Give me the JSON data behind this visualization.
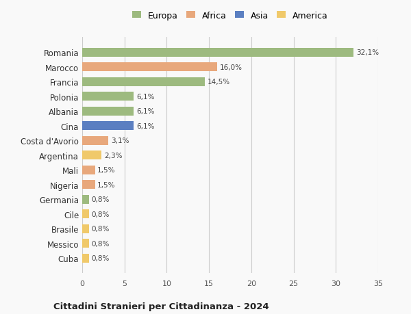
{
  "countries": [
    "Romania",
    "Marocco",
    "Francia",
    "Polonia",
    "Albania",
    "Cina",
    "Costa d'Avorio",
    "Argentina",
    "Mali",
    "Nigeria",
    "Germania",
    "Cile",
    "Brasile",
    "Messico",
    "Cuba"
  ],
  "values": [
    32.1,
    16.0,
    14.5,
    6.1,
    6.1,
    6.1,
    3.1,
    2.3,
    1.5,
    1.5,
    0.8,
    0.8,
    0.8,
    0.8,
    0.8
  ],
  "labels": [
    "32,1%",
    "16,0%",
    "14,5%",
    "6,1%",
    "6,1%",
    "6,1%",
    "3,1%",
    "2,3%",
    "1,5%",
    "1,5%",
    "0,8%",
    "0,8%",
    "0,8%",
    "0,8%",
    "0,8%"
  ],
  "continents": [
    "Europa",
    "Africa",
    "Europa",
    "Europa",
    "Europa",
    "Asia",
    "Africa",
    "America",
    "Africa",
    "Africa",
    "Europa",
    "America",
    "America",
    "America",
    "America"
  ],
  "colors": {
    "Europa": "#9dba7f",
    "Africa": "#e8a87c",
    "Asia": "#5b7fc1",
    "America": "#f0c96a"
  },
  "legend_order": [
    "Europa",
    "Africa",
    "Asia",
    "America"
  ],
  "xlim": [
    0,
    35
  ],
  "xticks": [
    0,
    5,
    10,
    15,
    20,
    25,
    30,
    35
  ],
  "title": "Cittadini Stranieri per Cittadinanza - 2024",
  "background_color": "#f9f9f9",
  "grid_color": "#cccccc",
  "bar_height": 0.6
}
